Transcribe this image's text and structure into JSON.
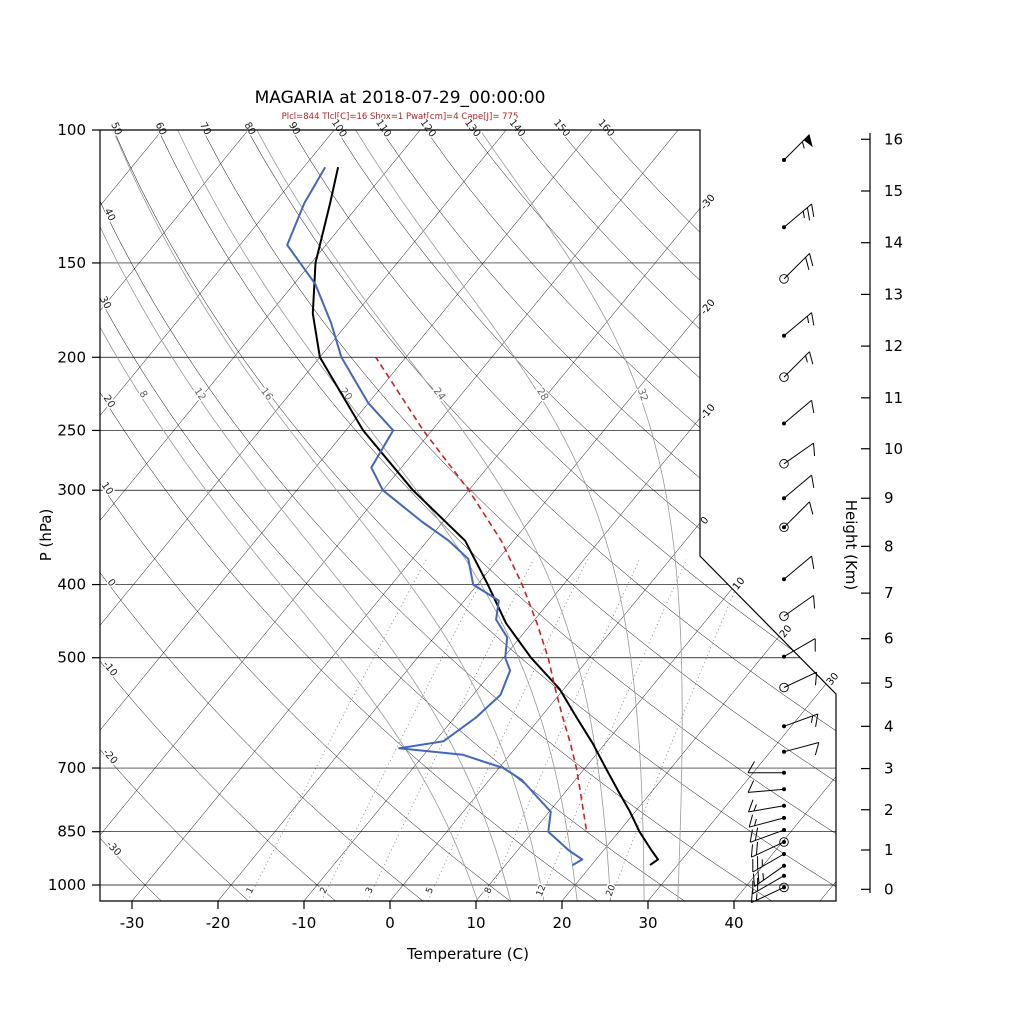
{
  "station": "MAGARIA",
  "datetime": "2018-07-29_00:00:00",
  "title": "MAGARIA at 2018-07-29_00:00:00",
  "subtitle": "Plcl=844 Tlcl[C]=16 Shox=1 Pwat[cm]=4 Cape[J]= 775",
  "indices": {
    "Plcl": 844,
    "Tlcl_C": 16,
    "Shox": 1,
    "Pwat_cm": 4,
    "Cape_J": 775
  },
  "axes": {
    "pressure_label": "P (hPa)",
    "temperature_label": "Temperature (C)",
    "height_label": "Height (Km)",
    "pressure_ticks": [
      100,
      150,
      200,
      250,
      300,
      400,
      500,
      700,
      850,
      1000
    ],
    "temperature_ticks": [
      -30,
      -20,
      -10,
      0,
      10,
      20,
      30,
      40
    ],
    "height_ticks": [
      0,
      1,
      2,
      3,
      4,
      5,
      6,
      7,
      8,
      9,
      10,
      11,
      12,
      13,
      14,
      15,
      16
    ],
    "pressure_range_hPa": [
      100,
      1050
    ]
  },
  "background": {
    "isotherms_C": [
      -110,
      -100,
      -90,
      -80,
      -70,
      -60,
      -50,
      -40,
      -30,
      -20,
      -10,
      0,
      10,
      20,
      30,
      40,
      50
    ],
    "isotherm_edge_labels_C": [
      -30,
      -20,
      -10,
      0,
      10,
      20,
      30
    ],
    "dry_adiabats_C": [
      -30,
      -20,
      -10,
      0,
      10,
      20,
      30,
      40,
      50,
      60,
      70,
      80,
      90,
      100,
      110,
      120,
      130,
      140,
      150,
      160
    ],
    "dry_adiabat_top_labels_C": [
      50,
      60,
      70,
      80,
      90,
      100,
      110,
      120,
      130,
      140,
      150,
      160
    ],
    "dry_adiabat_left_labels_C": [
      40,
      30,
      20,
      10,
      0,
      -10,
      -20,
      -30
    ],
    "moist_adiabats_C": [
      8,
      12,
      16,
      20,
      24,
      28,
      32
    ],
    "mixing_ratio_g_kg": [
      1,
      2,
      3,
      5,
      8,
      12,
      20
    ]
  },
  "colors": {
    "temperature_line": "#000000",
    "dewpoint_line": "#4466bb",
    "parcel_line": "#cc2222",
    "subtitle_text": "#b22222",
    "grid_lines": "#000000",
    "moist_adiabat_lines": "#999999",
    "mixing_ratio_lines": "#777777"
  },
  "chart_data": {
    "type": "line",
    "variant": "skew-t_log-p_sounding",
    "title": "MAGARIA at 2018-07-29_00:00:00",
    "xlabel": "Temperature (C)",
    "ylabel": "P (hPa)",
    "y2label": "Height (Km)",
    "pressure_log_scale": true,
    "temperature_profile": {
      "pressure_hPa": [
        941,
        925,
        900,
        850,
        800,
        750,
        700,
        650,
        600,
        550,
        500,
        450,
        400,
        350,
        300,
        250,
        200,
        175,
        150,
        125,
        112
      ],
      "temperature_C": [
        26.8,
        27.2,
        25.6,
        22.4,
        19.4,
        16.0,
        12.4,
        8.6,
        4.2,
        -0.5,
        -6.8,
        -13.0,
        -18.8,
        -25.6,
        -36.5,
        -48.0,
        -60.0,
        -65.0,
        -69.5,
        -73.5,
        -76.0
      ]
    },
    "dewpoint_profile": {
      "pressure_hPa": [
        941,
        925,
        900,
        850,
        800,
        760,
        726,
        700,
        686,
        672,
        659,
        645,
        600,
        560,
        520,
        500,
        470,
        445,
        420,
        400,
        370,
        350,
        330,
        300,
        280,
        250,
        230,
        200,
        180,
        160,
        142,
        125,
        112
      ],
      "dewpoint_C": [
        17.8,
        18.4,
        16.0,
        11.8,
        10.2,
        6.8,
        3.8,
        0.5,
        -2.5,
        -5.5,
        -13.5,
        -9.0,
        -7.5,
        -6.8,
        -8.0,
        -9.8,
        -11.5,
        -14.5,
        -16.0,
        -20.5,
        -23.5,
        -27.5,
        -32.5,
        -40.0,
        -43.5,
        -44.5,
        -50.0,
        -57.5,
        -62.0,
        -67.5,
        -74.5,
        -76.5,
        -77.5
      ]
    },
    "parcel_profile": {
      "pressure_hPa": [
        844,
        800,
        750,
        700,
        650,
        600,
        550,
        500,
        450,
        400,
        350,
        300,
        250,
        200
      ],
      "temperature_C": [
        16.0,
        14.0,
        11.6,
        9.0,
        6.0,
        2.6,
        -1.0,
        -4.8,
        -9.4,
        -14.8,
        -21.4,
        -30.0,
        -41.0,
        -53.5
      ]
    },
    "wind_profile": [
      {
        "height_km": 0.05,
        "direction_deg": 245,
        "speed_kt": 15,
        "marker": "circledot"
      },
      {
        "height_km": 0.35,
        "direction_deg": 240,
        "speed_kt": 20,
        "marker": "dot"
      },
      {
        "height_km": 0.6,
        "direction_deg": 235,
        "speed_kt": 25,
        "marker": "dot"
      },
      {
        "height_km": 0.9,
        "direction_deg": 240,
        "speed_kt": 25,
        "marker": "dot"
      },
      {
        "height_km": 1.2,
        "direction_deg": 245,
        "speed_kt": 20,
        "marker": "circledot"
      },
      {
        "height_km": 1.5,
        "direction_deg": 250,
        "speed_kt": 20,
        "marker": "dot"
      },
      {
        "height_km": 1.8,
        "direction_deg": 255,
        "speed_kt": 15,
        "marker": "dot"
      },
      {
        "height_km": 2.1,
        "direction_deg": 260,
        "speed_kt": 15,
        "marker": "dot"
      },
      {
        "height_km": 2.5,
        "direction_deg": 265,
        "speed_kt": 12,
        "marker": "dot"
      },
      {
        "height_km": 2.9,
        "direction_deg": 270,
        "speed_kt": 10,
        "marker": "dot"
      },
      {
        "height_km": 3.4,
        "direction_deg": 75,
        "speed_kt": 10,
        "marker": "dot"
      },
      {
        "height_km": 4.0,
        "direction_deg": 70,
        "speed_kt": 15,
        "marker": "dot"
      },
      {
        "height_km": 4.9,
        "direction_deg": 65,
        "speed_kt": 10,
        "marker": "circle"
      },
      {
        "height_km": 5.6,
        "direction_deg": 60,
        "speed_kt": 10,
        "marker": "dot"
      },
      {
        "height_km": 6.5,
        "direction_deg": 55,
        "speed_kt": 10,
        "marker": "circle"
      },
      {
        "height_km": 7.3,
        "direction_deg": 50,
        "speed_kt": 10,
        "marker": "dot"
      },
      {
        "height_km": 8.4,
        "direction_deg": 45,
        "speed_kt": 10,
        "marker": "circledot"
      },
      {
        "height_km": 9.0,
        "direction_deg": 50,
        "speed_kt": 10,
        "marker": "dot"
      },
      {
        "height_km": 9.7,
        "direction_deg": 55,
        "speed_kt": 10,
        "marker": "circle"
      },
      {
        "height_km": 10.5,
        "direction_deg": 50,
        "speed_kt": 12,
        "marker": "dot"
      },
      {
        "height_km": 11.4,
        "direction_deg": 45,
        "speed_kt": 15,
        "marker": "circle"
      },
      {
        "height_km": 12.2,
        "direction_deg": 50,
        "speed_kt": 15,
        "marker": "dot"
      },
      {
        "height_km": 13.3,
        "direction_deg": 45,
        "speed_kt": 20,
        "marker": "circle"
      },
      {
        "height_km": 14.3,
        "direction_deg": 50,
        "speed_kt": 25,
        "marker": "dot"
      },
      {
        "height_km": 15.6,
        "direction_deg": 45,
        "speed_kt": 55,
        "marker": "dot"
      }
    ]
  }
}
